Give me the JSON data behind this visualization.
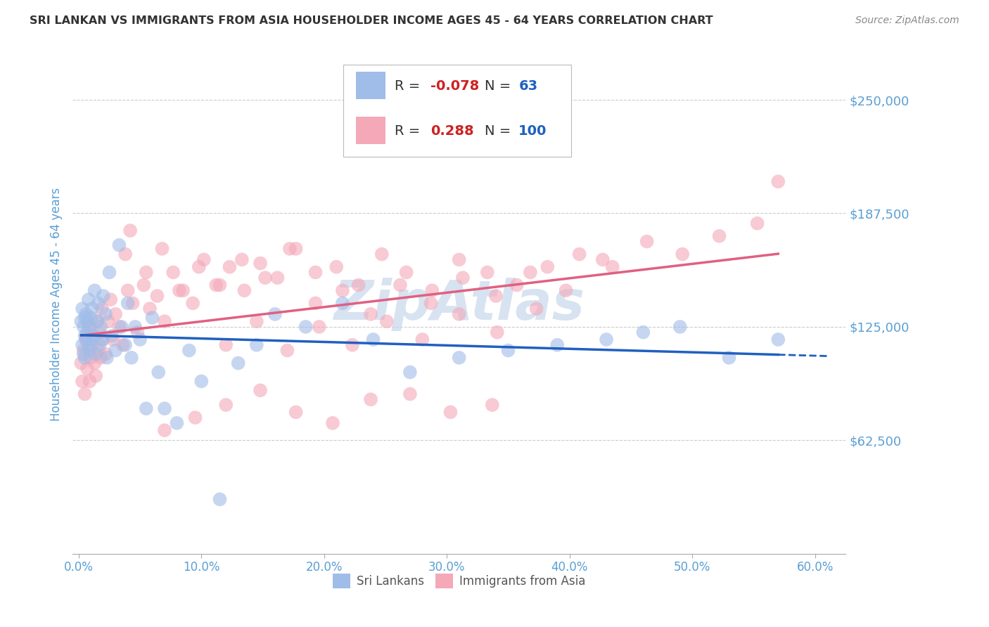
{
  "title": "SRI LANKAN VS IMMIGRANTS FROM ASIA HOUSEHOLDER INCOME AGES 45 - 64 YEARS CORRELATION CHART",
  "source": "Source: ZipAtlas.com",
  "ylabel": "Householder Income Ages 45 - 64 years",
  "xlabel_ticks": [
    "0.0%",
    "10.0%",
    "20.0%",
    "30.0%",
    "40.0%",
    "50.0%",
    "60.0%"
  ],
  "xlabel_vals": [
    0.0,
    0.1,
    0.2,
    0.3,
    0.4,
    0.5,
    0.6
  ],
  "ytick_labels": [
    "$62,500",
    "$125,000",
    "$187,500",
    "$250,000"
  ],
  "ytick_vals": [
    62500,
    125000,
    187500,
    250000
  ],
  "ylim": [
    0,
    275000
  ],
  "xlim": [
    -0.005,
    0.625
  ],
  "sri_lankan_color": "#a0bce8",
  "asia_color": "#f4a8b8",
  "sri_lankan_line_color": "#2060c0",
  "asia_line_color": "#e06080",
  "watermark_color": "#c8d8ec",
  "legend_sri_R": "-0.078",
  "legend_sri_N": "63",
  "legend_asia_R": "0.288",
  "legend_asia_N": "100",
  "legend_label1": "Sri Lankans",
  "legend_label2": "Immigrants from Asia",
  "background_color": "#ffffff",
  "grid_color": "#cccccc",
  "title_color": "#333333",
  "axis_label_color": "#5a9fd4",
  "tick_label_color": "#5a9fd4",
  "sri_x": [
    0.002,
    0.003,
    0.003,
    0.004,
    0.004,
    0.005,
    0.005,
    0.005,
    0.006,
    0.006,
    0.007,
    0.007,
    0.008,
    0.008,
    0.009,
    0.009,
    0.01,
    0.01,
    0.011,
    0.012,
    0.013,
    0.014,
    0.015,
    0.016,
    0.017,
    0.018,
    0.019,
    0.02,
    0.022,
    0.023,
    0.025,
    0.027,
    0.03,
    0.033,
    0.035,
    0.038,
    0.04,
    0.043,
    0.046,
    0.05,
    0.055,
    0.06,
    0.065,
    0.07,
    0.08,
    0.09,
    0.1,
    0.115,
    0.13,
    0.145,
    0.16,
    0.185,
    0.215,
    0.24,
    0.27,
    0.31,
    0.35,
    0.39,
    0.43,
    0.46,
    0.49,
    0.53,
    0.57
  ],
  "sri_y": [
    128000,
    115000,
    135000,
    125000,
    110000,
    120000,
    130000,
    108000,
    118000,
    132000,
    122000,
    128000,
    115000,
    140000,
    125000,
    112000,
    130000,
    118000,
    135000,
    120000,
    145000,
    110000,
    128000,
    138000,
    115000,
    125000,
    118000,
    142000,
    132000,
    108000,
    155000,
    120000,
    112000,
    170000,
    125000,
    115000,
    138000,
    108000,
    125000,
    118000,
    80000,
    130000,
    100000,
    80000,
    72000,
    112000,
    95000,
    30000,
    105000,
    115000,
    132000,
    125000,
    138000,
    118000,
    100000,
    108000,
    112000,
    115000,
    118000,
    122000,
    125000,
    108000,
    118000
  ],
  "asia_x": [
    0.002,
    0.003,
    0.004,
    0.005,
    0.006,
    0.007,
    0.008,
    0.009,
    0.01,
    0.011,
    0.012,
    0.013,
    0.014,
    0.015,
    0.016,
    0.017,
    0.018,
    0.019,
    0.02,
    0.022,
    0.024,
    0.026,
    0.028,
    0.03,
    0.033,
    0.036,
    0.04,
    0.044,
    0.048,
    0.053,
    0.058,
    0.064,
    0.07,
    0.077,
    0.085,
    0.093,
    0.102,
    0.112,
    0.123,
    0.135,
    0.148,
    0.162,
    0.177,
    0.193,
    0.21,
    0.228,
    0.247,
    0.267,
    0.288,
    0.31,
    0.333,
    0.357,
    0.382,
    0.408,
    0.435,
    0.463,
    0.492,
    0.522,
    0.553,
    0.57,
    0.038,
    0.042,
    0.055,
    0.068,
    0.082,
    0.098,
    0.115,
    0.133,
    0.152,
    0.172,
    0.193,
    0.215,
    0.238,
    0.262,
    0.287,
    0.313,
    0.34,
    0.368,
    0.397,
    0.427,
    0.12,
    0.145,
    0.17,
    0.196,
    0.223,
    0.251,
    0.28,
    0.31,
    0.341,
    0.373,
    0.07,
    0.095,
    0.12,
    0.148,
    0.177,
    0.207,
    0.238,
    0.27,
    0.303,
    0.337
  ],
  "asia_y": [
    105000,
    95000,
    112000,
    88000,
    118000,
    102000,
    125000,
    95000,
    108000,
    115000,
    120000,
    105000,
    98000,
    128000,
    112000,
    122000,
    108000,
    135000,
    118000,
    110000,
    128000,
    140000,
    118000,
    132000,
    125000,
    115000,
    145000,
    138000,
    122000,
    148000,
    135000,
    142000,
    128000,
    155000,
    145000,
    138000,
    162000,
    148000,
    158000,
    145000,
    160000,
    152000,
    168000,
    155000,
    158000,
    148000,
    165000,
    155000,
    145000,
    162000,
    155000,
    148000,
    158000,
    165000,
    158000,
    172000,
    165000,
    175000,
    182000,
    205000,
    165000,
    178000,
    155000,
    168000,
    145000,
    158000,
    148000,
    162000,
    152000,
    168000,
    138000,
    145000,
    132000,
    148000,
    138000,
    152000,
    142000,
    155000,
    145000,
    162000,
    115000,
    128000,
    112000,
    125000,
    115000,
    128000,
    118000,
    132000,
    122000,
    135000,
    68000,
    75000,
    82000,
    90000,
    78000,
    72000,
    85000,
    88000,
    78000,
    82000
  ]
}
